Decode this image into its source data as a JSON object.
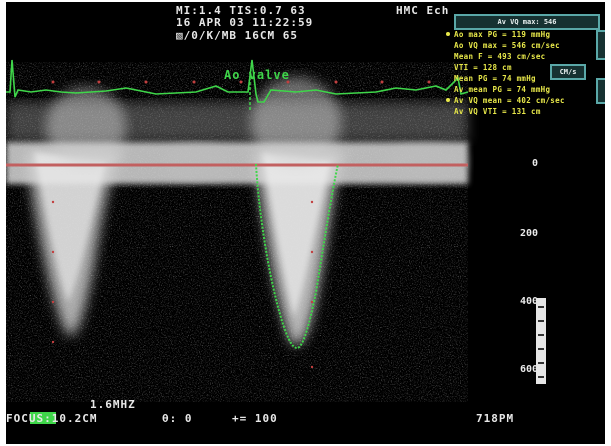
{
  "header": {
    "line1": "MI:1.4 TIS:0.7 63",
    "line2": "16 APR 03  11:22:59",
    "line3": "▧/0/K/MB  16CM    65",
    "institution": "HMC Ech"
  },
  "measurements": {
    "title": "Av VQ max: 546",
    "rows": [
      "Ao max PG = 119 mmHg",
      "Ao VQ max = 546 cm/sec",
      "Mean F = 493 cm/sec",
      "VTI = 128 cm",
      "Mean PG = 74 mmHg",
      "Av mean PG = 74 mmHg",
      "Av VQ mean = 402 cm/sec",
      "Av VQ VTI = 131 cm"
    ],
    "side_label": "CM/s"
  },
  "labels": {
    "ao_valve": "Ao valve",
    "frequency": "1.6MHZ",
    "focus": "FOCUS:10.2CM",
    "angle": "θ: 0",
    "gain": "+= 100",
    "time": "718PM"
  },
  "scale": {
    "ticks": [
      "0",
      "200",
      "400",
      "600"
    ],
    "unit": "cm/s"
  },
  "colors": {
    "ecg_trace": "#3fd64a",
    "baseline": "#c26060",
    "text": "#e8e8e8",
    "measurement_text": "#e8e84a"
  }
}
